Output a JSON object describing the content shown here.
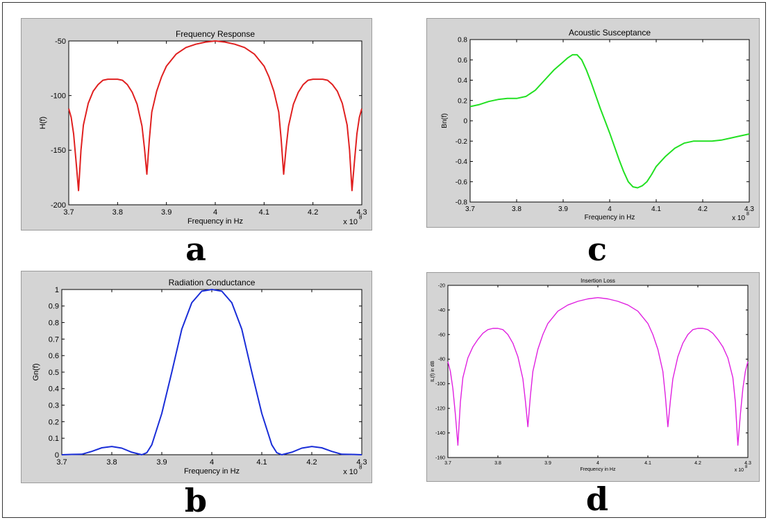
{
  "chart_data": [
    {
      "id": "a",
      "panel_label": "a",
      "type": "line",
      "title": "Frequency Response",
      "xlabel": "Frequency in Hz",
      "ylabel": "H(f)",
      "x_exponent_label": "x 10",
      "x_exponent_power": "8",
      "xlim": [
        3.7,
        4.3
      ],
      "ylim": [
        -200,
        -50
      ],
      "xticks": [
        3.7,
        3.8,
        3.9,
        4.0,
        4.1,
        4.2,
        4.3
      ],
      "xtick_labels": [
        "3.7",
        "3.8",
        "3.9",
        "4",
        "4.1",
        "4.2",
        "4.3"
      ],
      "yticks": [
        -200,
        -150,
        -100,
        -50
      ],
      "ytick_labels": [
        "-200",
        "-150",
        "-100",
        "-50"
      ],
      "grid": false,
      "series": [
        {
          "color": "#e02020",
          "x": [
            3.7,
            3.705,
            3.71,
            3.715,
            3.72,
            3.725,
            3.73,
            3.74,
            3.75,
            3.76,
            3.77,
            3.78,
            3.79,
            3.8,
            3.81,
            3.82,
            3.83,
            3.84,
            3.85,
            3.855,
            3.86,
            3.865,
            3.87,
            3.88,
            3.89,
            3.9,
            3.92,
            3.94,
            3.96,
            3.98,
            4.0,
            4.02,
            4.04,
            4.06,
            4.08,
            4.1,
            4.11,
            4.12,
            4.13,
            4.135,
            4.14,
            4.145,
            4.15,
            4.16,
            4.17,
            4.18,
            4.19,
            4.2,
            4.21,
            4.22,
            4.23,
            4.24,
            4.25,
            4.26,
            4.27,
            4.275,
            4.28,
            4.285,
            4.29,
            4.295,
            4.3
          ],
          "y": [
            -112,
            -120,
            -135,
            -160,
            -187,
            -150,
            -127,
            -107,
            -96,
            -90,
            -86,
            -85,
            -85,
            -85,
            -86,
            -90,
            -97,
            -108,
            -128,
            -148,
            -172,
            -140,
            -115,
            -96,
            -83,
            -73,
            -62,
            -56,
            -53,
            -51,
            -50,
            -51,
            -53,
            -56,
            -62,
            -73,
            -83,
            -96,
            -115,
            -140,
            -172,
            -148,
            -128,
            -108,
            -97,
            -90,
            -86,
            -85,
            -85,
            -85,
            -86,
            -90,
            -96,
            -107,
            -127,
            -150,
            -187,
            -160,
            -135,
            -120,
            -112
          ]
        }
      ]
    },
    {
      "id": "b",
      "panel_label": "b",
      "type": "line",
      "title": "Radiation Conductance",
      "xlabel": "Frequency in Hz",
      "ylabel": "Gn(f)",
      "x_exponent_label": "x 10",
      "x_exponent_power": "8",
      "xlim": [
        3.7,
        4.3
      ],
      "ylim": [
        0,
        1
      ],
      "xticks": [
        3.7,
        3.8,
        3.9,
        4.0,
        4.1,
        4.2,
        4.3
      ],
      "xtick_labels": [
        "3.7",
        "3.8",
        "3.9",
        "4",
        "4.1",
        "4.2",
        "4.3"
      ],
      "yticks": [
        0,
        0.1,
        0.2,
        0.3,
        0.4,
        0.5,
        0.6,
        0.7,
        0.8,
        0.9,
        1.0
      ],
      "ytick_labels": [
        "0",
        "0.1",
        "0.2",
        "0.3",
        "0.4",
        "0.5",
        "0.6",
        "0.7",
        "0.8",
        "0.9",
        "1"
      ],
      "grid": false,
      "series": [
        {
          "color": "#1a2ed8",
          "x": [
            3.7,
            3.72,
            3.74,
            3.76,
            3.78,
            3.8,
            3.82,
            3.84,
            3.86,
            3.87,
            3.88,
            3.9,
            3.92,
            3.94,
            3.96,
            3.98,
            4.0,
            4.02,
            4.04,
            4.06,
            4.08,
            4.1,
            4.12,
            4.13,
            4.14,
            4.16,
            4.18,
            4.2,
            4.22,
            4.24,
            4.26,
            4.28,
            4.3
          ],
          "y": [
            0.0,
            0.002,
            0.003,
            0.02,
            0.042,
            0.05,
            0.04,
            0.015,
            0.0,
            0.012,
            0.06,
            0.25,
            0.5,
            0.76,
            0.92,
            0.99,
            1.0,
            0.99,
            0.92,
            0.76,
            0.5,
            0.25,
            0.06,
            0.012,
            0.0,
            0.015,
            0.04,
            0.05,
            0.042,
            0.02,
            0.003,
            0.002,
            0.0
          ]
        }
      ]
    },
    {
      "id": "c",
      "panel_label": "c",
      "type": "line",
      "title": "Acoustic Susceptance",
      "xlabel": "Frequency in Hz",
      "ylabel": "Bn(f)",
      "x_exponent_label": "x 10",
      "x_exponent_power": "8",
      "xlim": [
        3.7,
        4.3
      ],
      "ylim": [
        -0.8,
        0.8
      ],
      "xticks": [
        3.7,
        3.8,
        3.9,
        4.0,
        4.1,
        4.2,
        4.3
      ],
      "xtick_labels": [
        "3.7",
        "3.8",
        "3.9",
        "4",
        "4.1",
        "4.2",
        "4.3"
      ],
      "yticks": [
        -0.8,
        -0.6,
        -0.4,
        -0.2,
        0,
        0.2,
        0.4,
        0.6,
        0.8
      ],
      "ytick_labels": [
        "-0.8",
        "-0.6",
        "-0.4",
        "-0.2",
        "0",
        "0.2",
        "0.4",
        "0.6",
        "0.8"
      ],
      "grid": false,
      "series": [
        {
          "color": "#22e022",
          "x": [
            3.7,
            3.72,
            3.74,
            3.76,
            3.78,
            3.8,
            3.82,
            3.84,
            3.86,
            3.88,
            3.9,
            3.91,
            3.92,
            3.93,
            3.94,
            3.95,
            3.96,
            3.97,
            3.98,
            3.99,
            4.0,
            4.01,
            4.02,
            4.03,
            4.04,
            4.05,
            4.06,
            4.07,
            4.08,
            4.09,
            4.1,
            4.12,
            4.14,
            4.16,
            4.18,
            4.2,
            4.22,
            4.24,
            4.26,
            4.28,
            4.3
          ],
          "y": [
            0.14,
            0.16,
            0.19,
            0.21,
            0.22,
            0.22,
            0.24,
            0.3,
            0.4,
            0.5,
            0.58,
            0.62,
            0.65,
            0.65,
            0.6,
            0.5,
            0.38,
            0.25,
            0.12,
            0.0,
            -0.12,
            -0.25,
            -0.38,
            -0.5,
            -0.6,
            -0.65,
            -0.66,
            -0.64,
            -0.6,
            -0.53,
            -0.45,
            -0.35,
            -0.27,
            -0.22,
            -0.2,
            -0.2,
            -0.2,
            -0.19,
            -0.17,
            -0.15,
            -0.13
          ]
        }
      ]
    },
    {
      "id": "d",
      "panel_label": "d",
      "type": "line",
      "title": "Insertion Loss",
      "xlabel": "Frequency in Hz",
      "ylabel": "IL(f) in dB",
      "x_exponent_label": "x 10",
      "x_exponent_power": "8",
      "xlim": [
        3.7,
        4.3
      ],
      "ylim": [
        -160,
        -20
      ],
      "xticks": [
        3.7,
        3.8,
        3.9,
        4.0,
        4.1,
        4.2,
        4.3
      ],
      "xtick_labels": [
        "3.7",
        "3.8",
        "3.9",
        "4",
        "4.1",
        "4.2",
        "4.3"
      ],
      "yticks": [
        -160,
        -140,
        -120,
        -100,
        -80,
        -60,
        -40,
        -20
      ],
      "ytick_labels": [
        "-160",
        "-140",
        "-120",
        "-100",
        "-80",
        "-60",
        "-40",
        "-20"
      ],
      "grid": false,
      "series": [
        {
          "color": "#e020e0",
          "x": [
            3.7,
            3.705,
            3.71,
            3.715,
            3.72,
            3.725,
            3.73,
            3.74,
            3.75,
            3.76,
            3.77,
            3.78,
            3.79,
            3.8,
            3.81,
            3.82,
            3.83,
            3.84,
            3.85,
            3.855,
            3.86,
            3.865,
            3.87,
            3.88,
            3.89,
            3.9,
            3.92,
            3.94,
            3.96,
            3.98,
            4.0,
            4.02,
            4.04,
            4.06,
            4.08,
            4.1,
            4.11,
            4.12,
            4.13,
            4.135,
            4.14,
            4.145,
            4.15,
            4.16,
            4.17,
            4.18,
            4.19,
            4.2,
            4.21,
            4.22,
            4.23,
            4.24,
            4.25,
            4.26,
            4.27,
            4.275,
            4.28,
            4.285,
            4.29,
            4.295,
            4.3
          ],
          "y": [
            -82,
            -90,
            -104,
            -125,
            -150,
            -115,
            -95,
            -79,
            -70,
            -64,
            -59,
            -56,
            -55,
            -55,
            -56,
            -60,
            -67,
            -78,
            -96,
            -114,
            -135,
            -110,
            -90,
            -72,
            -60,
            -51,
            -41,
            -36,
            -33,
            -31,
            -30,
            -31,
            -33,
            -36,
            -41,
            -51,
            -60,
            -72,
            -90,
            -110,
            -135,
            -114,
            -96,
            -78,
            -67,
            -60,
            -56,
            -55,
            -55,
            -56,
            -59,
            -64,
            -70,
            -79,
            -95,
            -115,
            -150,
            -125,
            -104,
            -90,
            -82
          ]
        }
      ]
    }
  ]
}
